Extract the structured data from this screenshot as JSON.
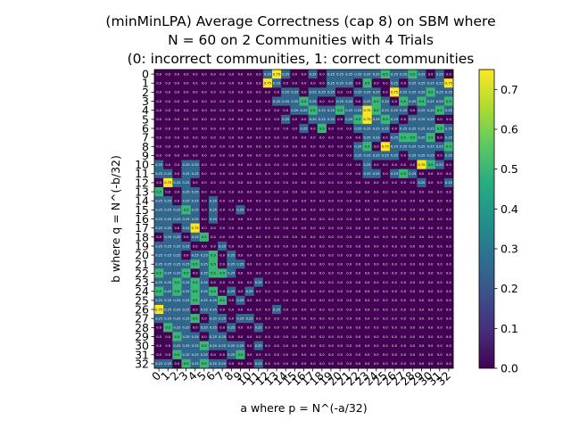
{
  "chart_data": {
    "type": "heatmap",
    "title": [
      "(minMinLPA) Average Correctness (cap 8) on SBM where",
      "N = 60 on 2 Communities with 4 Trials",
      "(0: incorrect communities, 1: correct communities"
    ],
    "xlabel": "a where p = N^(-a/32)",
    "ylabel": "b where q = N^(-b/32)",
    "x_ticks": [
      "0",
      "1",
      "2",
      "3",
      "4",
      "5",
      "6",
      "7",
      "8",
      "9",
      "10",
      "11",
      "12",
      "13",
      "14",
      "15",
      "16",
      "17",
      "18",
      "19",
      "20",
      "21",
      "22",
      "23",
      "24",
      "25",
      "26",
      "27",
      "28",
      "29",
      "30",
      "31",
      "32"
    ],
    "y_ticks": [
      "0",
      "1",
      "2",
      "3",
      "4",
      "5",
      "6",
      "7",
      "8",
      "9",
      "10",
      "11",
      "12",
      "13",
      "14",
      "15",
      "16",
      "17",
      "18",
      "19",
      "20",
      "21",
      "22",
      "23",
      "24",
      "25",
      "26",
      "27",
      "28",
      "29",
      "30",
      "31",
      "32"
    ],
    "colorbar": {
      "colormap": "viridis",
      "range": [
        0.0,
        0.75
      ],
      "ticks": [
        "0.0",
        "0.1",
        "0.2",
        "0.3",
        "0.4",
        "0.5",
        "0.6",
        "0.7"
      ]
    },
    "values": [
      [
        0,
        0,
        0,
        0,
        0,
        0,
        0,
        0,
        0,
        0,
        0,
        0,
        0.25,
        0.75,
        0.25,
        0,
        0,
        0.25,
        0,
        0.25,
        0.25,
        0.25,
        0.25,
        0.25,
        0.25,
        0.5,
        0.25,
        0.25,
        0.5,
        0.25,
        0,
        0.25,
        0
      ],
      [
        0,
        0,
        0,
        0,
        0,
        0,
        0,
        0,
        0,
        0,
        0,
        0,
        0.75,
        0.25,
        0,
        0,
        0,
        0,
        0,
        0.25,
        0.25,
        0.25,
        0,
        0.5,
        0,
        0,
        0.25,
        0,
        0.25,
        0.25,
        0.25,
        0.25,
        0.75
      ],
      [
        0,
        0,
        0,
        0,
        0,
        0,
        0,
        0,
        0,
        0,
        0,
        0,
        0,
        0,
        0.25,
        0.25,
        0,
        0.25,
        0.25,
        0.25,
        0,
        0,
        0.25,
        0.25,
        0.25,
        0,
        0.75,
        0.25,
        0.25,
        0.25,
        0.5,
        0.25,
        0.25
      ],
      [
        0,
        0,
        0,
        0,
        0,
        0,
        0,
        0,
        0,
        0,
        0,
        0,
        0,
        0.25,
        0.25,
        0.25,
        0.5,
        0.25,
        0,
        0,
        0.25,
        0.25,
        0,
        0.25,
        0.5,
        0.25,
        0,
        0.5,
        0.25,
        0.5,
        0.25,
        0.25,
        0.5
      ],
      [
        0,
        0,
        0,
        0,
        0,
        0,
        0,
        0,
        0,
        0,
        0,
        0,
        0,
        0,
        0,
        0.25,
        0.25,
        0.5,
        0.25,
        0.25,
        0.5,
        0.25,
        0.25,
        0.75,
        0.5,
        0.25,
        0.25,
        0.25,
        0,
        0.25,
        0.25,
        0.5,
        0.25
      ],
      [
        0,
        0,
        0,
        0,
        0,
        0,
        0,
        0,
        0,
        0,
        0,
        0,
        0,
        0,
        0.25,
        0,
        0,
        0.25,
        0.25,
        0.25,
        0,
        0.25,
        0.5,
        0.75,
        0.25,
        0.5,
        0.25,
        0,
        0.25,
        0.25,
        0.25,
        0,
        0
      ],
      [
        0,
        0,
        0,
        0,
        0,
        0,
        0,
        0,
        0,
        0,
        0,
        0,
        0,
        0,
        0,
        0,
        0.25,
        0,
        0.5,
        0,
        0,
        0,
        0.25,
        0.25,
        0.25,
        0.25,
        0,
        0.25,
        0.25,
        0.25,
        0.25,
        0.5,
        0.25
      ],
      [
        0,
        0,
        0,
        0,
        0,
        0,
        0,
        0,
        0,
        0,
        0,
        0,
        0,
        0,
        0,
        0,
        0,
        0,
        0,
        0,
        0,
        0,
        0,
        0.25,
        0.25,
        0,
        0.25,
        0.5,
        0.5,
        0.25,
        0.5,
        0,
        0.25
      ],
      [
        0,
        0,
        0,
        0,
        0,
        0,
        0,
        0,
        0,
        0,
        0,
        0,
        0,
        0,
        0,
        0,
        0,
        0,
        0,
        0,
        0,
        0,
        0.25,
        0.5,
        0,
        0.75,
        0.25,
        0.25,
        0.25,
        0.25,
        0.25,
        0.25,
        0.5
      ],
      [
        0,
        0,
        0,
        0,
        0,
        0,
        0,
        0,
        0,
        0,
        0,
        0,
        0,
        0,
        0,
        0,
        0,
        0,
        0,
        0,
        0,
        0,
        0.25,
        0.25,
        0.25,
        0.25,
        0.25,
        0,
        0.25,
        0.25,
        0.25,
        0,
        0.25
      ],
      [
        0.25,
        0,
        0,
        0.25,
        0.25,
        0,
        0,
        0,
        0,
        0,
        0,
        0,
        0,
        0,
        0,
        0,
        0,
        0,
        0,
        0,
        0,
        0,
        0,
        0.25,
        0,
        0,
        0,
        0,
        0,
        0.75,
        0.5,
        0.25,
        0
      ],
      [
        0.25,
        0.25,
        0,
        0.25,
        0.25,
        0,
        0,
        0,
        0,
        0,
        0,
        0,
        0,
        0,
        0,
        0,
        0,
        0,
        0,
        0,
        0,
        0,
        0,
        0.25,
        0.25,
        0,
        0.25,
        0.5,
        0.25,
        0,
        0,
        0,
        0
      ],
      [
        0,
        0.75,
        0.25,
        0.25,
        0,
        0,
        0,
        0,
        0,
        0,
        0,
        0,
        0,
        0,
        0,
        0,
        0,
        0,
        0,
        0,
        0,
        0,
        0,
        0,
        0,
        0,
        0,
        0,
        0,
        0.25,
        0,
        0,
        0.25
      ],
      [
        0.5,
        0,
        0,
        0.25,
        0.25,
        0,
        0,
        0,
        0,
        0,
        0,
        0,
        0,
        0,
        0,
        0,
        0,
        0,
        0,
        0,
        0,
        0,
        0,
        0,
        0,
        0,
        0,
        0,
        0,
        0,
        0,
        0,
        0
      ],
      [
        0.25,
        0.25,
        0,
        0.25,
        0.25,
        0,
        0.25,
        0,
        0,
        0,
        0,
        0,
        0,
        0,
        0,
        0,
        0,
        0,
        0,
        0,
        0,
        0,
        0,
        0,
        0,
        0,
        0,
        0,
        0,
        0,
        0,
        0,
        0
      ],
      [
        0.25,
        0.25,
        0.25,
        0.5,
        0.25,
        0,
        0.25,
        0,
        0,
        0.25,
        0,
        0,
        0,
        0,
        0,
        0,
        0,
        0,
        0,
        0,
        0,
        0,
        0,
        0,
        0,
        0,
        0,
        0,
        0,
        0,
        0,
        0,
        0
      ],
      [
        0.25,
        0.25,
        0.25,
        0.25,
        0.25,
        0,
        0.25,
        0,
        0,
        0,
        0,
        0,
        0,
        0,
        0,
        0,
        0,
        0,
        0,
        0,
        0,
        0,
        0,
        0,
        0,
        0,
        0,
        0,
        0,
        0,
        0,
        0,
        0
      ],
      [
        0.25,
        0.25,
        0,
        0.25,
        0.75,
        0,
        0,
        0,
        0,
        0,
        0,
        0,
        0,
        0,
        0,
        0,
        0,
        0,
        0,
        0,
        0,
        0,
        0,
        0,
        0,
        0,
        0,
        0,
        0,
        0,
        0,
        0,
        0
      ],
      [
        0,
        0.25,
        0.25,
        0,
        0.25,
        0.5,
        0,
        0,
        0,
        0,
        0,
        0,
        0,
        0,
        0,
        0,
        0,
        0,
        0,
        0,
        0,
        0,
        0,
        0,
        0,
        0,
        0,
        0,
        0,
        0,
        0,
        0,
        0
      ],
      [
        0.25,
        0.25,
        0.25,
        0.25,
        0,
        0,
        0,
        0.25,
        0,
        0,
        0,
        0,
        0,
        0,
        0,
        0,
        0,
        0,
        0,
        0,
        0,
        0,
        0,
        0,
        0,
        0,
        0,
        0,
        0,
        0,
        0,
        0,
        0
      ],
      [
        0.25,
        0.25,
        0.25,
        0,
        0.25,
        0.25,
        0.5,
        0,
        0.25,
        0,
        0,
        0,
        0,
        0,
        0,
        0,
        0,
        0,
        0,
        0,
        0,
        0,
        0,
        0,
        0,
        0,
        0,
        0,
        0,
        0,
        0,
        0,
        0
      ],
      [
        0.25,
        0.25,
        0.25,
        0.25,
        0.5,
        0.25,
        0.5,
        0,
        0.25,
        0.25,
        0,
        0,
        0,
        0,
        0,
        0,
        0,
        0,
        0,
        0,
        0,
        0,
        0,
        0,
        0,
        0,
        0,
        0,
        0,
        0,
        0,
        0,
        0
      ],
      [
        0.5,
        0.25,
        0.25,
        0.5,
        0,
        0.25,
        0.5,
        0.5,
        0.25,
        0,
        0,
        0,
        0,
        0,
        0,
        0,
        0,
        0,
        0,
        0,
        0,
        0,
        0,
        0,
        0,
        0,
        0,
        0,
        0,
        0,
        0,
        0,
        0
      ],
      [
        0.25,
        0.25,
        0.5,
        0.25,
        0.5,
        0.25,
        0,
        0,
        0,
        0,
        0,
        0.25,
        0,
        0,
        0,
        0,
        0,
        0,
        0,
        0,
        0,
        0,
        0,
        0,
        0,
        0,
        0,
        0,
        0,
        0,
        0,
        0,
        0
      ],
      [
        0.5,
        0.25,
        0.5,
        0.25,
        0.5,
        0.25,
        0.5,
        0,
        0.25,
        0,
        0.25,
        0,
        0,
        0,
        0,
        0,
        0,
        0,
        0,
        0,
        0,
        0,
        0,
        0,
        0,
        0,
        0,
        0,
        0,
        0,
        0,
        0,
        0
      ],
      [
        0.25,
        0.25,
        0.25,
        0.25,
        0.5,
        0.25,
        0.25,
        0.5,
        0,
        0.25,
        0,
        0,
        0,
        0,
        0,
        0,
        0,
        0,
        0,
        0,
        0,
        0,
        0,
        0,
        0,
        0,
        0,
        0,
        0,
        0,
        0,
        0,
        0
      ],
      [
        0.75,
        0.25,
        0.25,
        0.25,
        0,
        0.25,
        0.25,
        0,
        0,
        0,
        0,
        0,
        0,
        0.25,
        0,
        0,
        0,
        0,
        0,
        0,
        0,
        0,
        0,
        0,
        0,
        0,
        0,
        0,
        0,
        0,
        0,
        0,
        0
      ],
      [
        0.25,
        0.25,
        0.25,
        0.25,
        0.5,
        0,
        0.25,
        0.25,
        0,
        0.25,
        0.25,
        0,
        0,
        0,
        0,
        0,
        0,
        0,
        0,
        0,
        0,
        0,
        0,
        0,
        0,
        0,
        0,
        0,
        0,
        0,
        0,
        0,
        0
      ],
      [
        0,
        0.5,
        0.25,
        0.25,
        0,
        0.25,
        0.25,
        0,
        0.25,
        0,
        0,
        0.25,
        0,
        0,
        0,
        0,
        0,
        0,
        0,
        0,
        0,
        0,
        0,
        0,
        0,
        0,
        0,
        0,
        0,
        0,
        0,
        0,
        0
      ],
      [
        0,
        0,
        0.5,
        0.25,
        0.25,
        0,
        0.25,
        0.25,
        0,
        0,
        0,
        0,
        0,
        0,
        0,
        0,
        0,
        0,
        0,
        0,
        0,
        0,
        0,
        0,
        0,
        0,
        0,
        0,
        0,
        0,
        0,
        0,
        0
      ],
      [
        0,
        0,
        0.25,
        0.25,
        0.25,
        0.5,
        0.25,
        0.25,
        0.25,
        0.25,
        0,
        0.25,
        0,
        0,
        0,
        0,
        0,
        0,
        0,
        0,
        0,
        0,
        0,
        0,
        0,
        0,
        0,
        0,
        0,
        0,
        0,
        0,
        0
      ],
      [
        0,
        0,
        0.5,
        0.25,
        0.25,
        0.25,
        0,
        0,
        0.25,
        0.5,
        0,
        0,
        0,
        0,
        0,
        0,
        0,
        0,
        0,
        0,
        0,
        0,
        0,
        0,
        0,
        0,
        0,
        0,
        0,
        0,
        0,
        0,
        0
      ],
      [
        0.25,
        0.25,
        0,
        0.5,
        0.25,
        0.5,
        0.25,
        0.25,
        0,
        0,
        0,
        0.25,
        0,
        0,
        0,
        0,
        0,
        0,
        0,
        0,
        0,
        0,
        0,
        0,
        0,
        0,
        0,
        0,
        0,
        0,
        0,
        0,
        0
      ]
    ]
  }
}
